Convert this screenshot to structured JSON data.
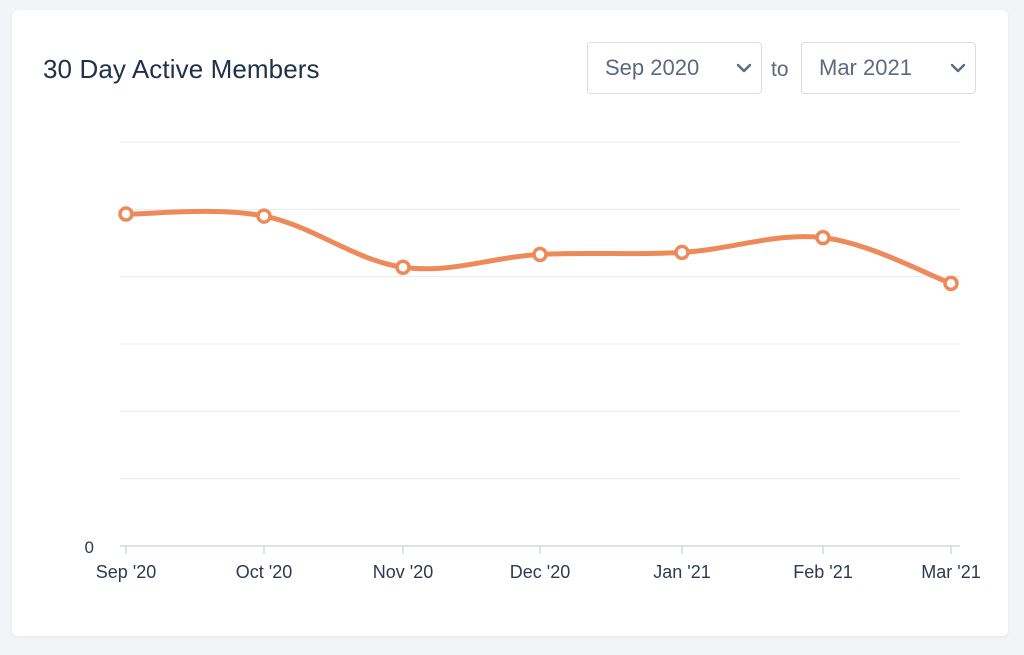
{
  "card": {
    "title": "30 Day Active Members"
  },
  "range": {
    "from_value": "Sep 2020",
    "to_label": "to",
    "to_value": "Mar 2021"
  },
  "icons": {
    "dropdown": "chevron-down-icon"
  },
  "chart_data": {
    "type": "line",
    "categories": [
      "Sep '20",
      "Oct '20",
      "Nov '20",
      "Dec '20",
      "Jan '21",
      "Feb '21",
      "Mar '21"
    ],
    "series": [
      {
        "values": [
          4.93,
          4.9,
          4.14,
          4.33,
          4.36,
          4.58,
          3.9
        ]
      }
    ],
    "title": "30 Day Active Members",
    "xlabel": "",
    "ylabel": "",
    "ylim": [
      0,
      6
    ],
    "y_tick_labels": [
      "0"
    ],
    "grid": true,
    "legend": "none",
    "colors": {
      "line": "#ee8a5a",
      "grid": "#e6e9ee",
      "axis": "#cfd8e6",
      "tick_text": "#2c3a4f"
    }
  }
}
